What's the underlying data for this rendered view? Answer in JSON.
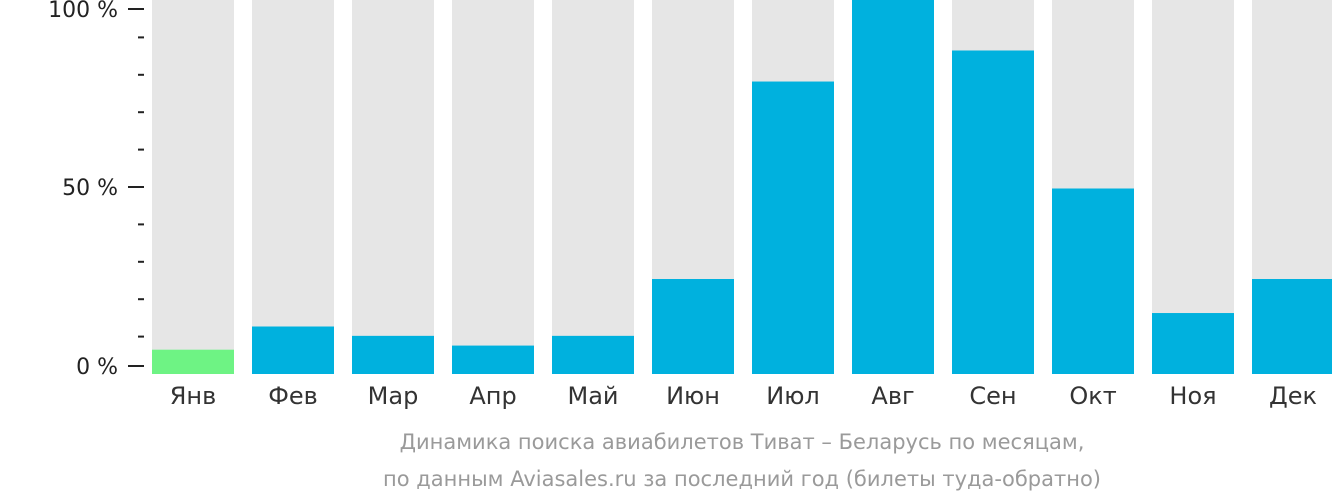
{
  "chart_data": {
    "type": "bar",
    "categories": [
      "Янв",
      "Фев",
      "Мар",
      "Апр",
      "Май",
      "Июн",
      "Июл",
      "Авг",
      "Сен",
      "Окт",
      "Ноя",
      "Дек"
    ],
    "values": [
      6.5,
      12.7,
      10.2,
      7.6,
      10.2,
      25.4,
      78.2,
      100,
      86.5,
      49.6,
      16.3,
      25.4
    ],
    "ylim": [
      0,
      100
    ],
    "y_ticks": [
      "0 %",
      "50 %",
      "100 %"
    ],
    "highlight_index": 0,
    "colors": {
      "bar": "#00b1de",
      "highlight": "#6ef384",
      "background_bar": "#e6e6e6",
      "axis": "#222222",
      "tick_label": "#222222",
      "category_label": "#333333"
    }
  },
  "caption": {
    "line1": "Динамика поиска авиабилетов Тиват – Беларусь по месяцам,",
    "line2": "по данным Aviasales.ru за последний год (билеты туда-обратно)"
  }
}
